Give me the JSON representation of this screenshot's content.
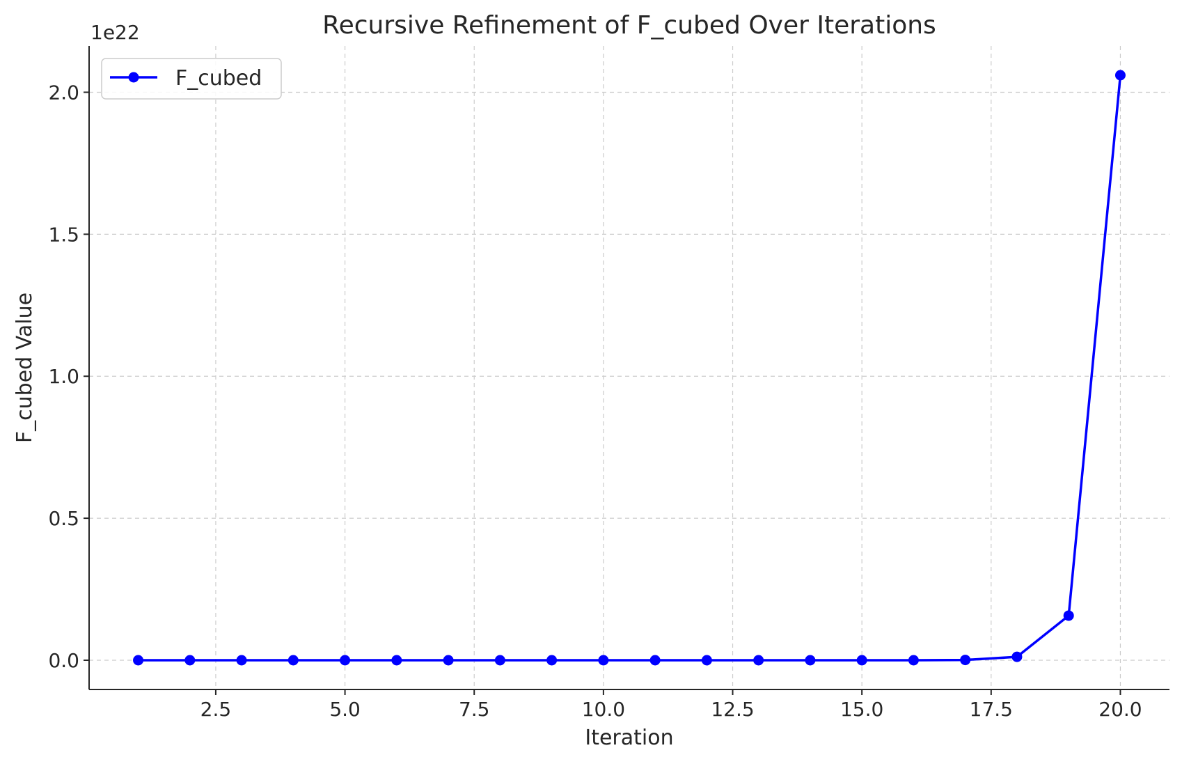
{
  "chart_data": {
    "type": "line",
    "title": "Recursive Refinement of F_cubed Over Iterations",
    "xlabel": "Iteration",
    "ylabel": "F_cubed Value",
    "y_offset_label": "1e22",
    "xlim": [
      0.05,
      20.95
    ],
    "ylim": [
      -0.103,
      2.163
    ],
    "x_ticks": [
      2.5,
      5.0,
      7.5,
      10.0,
      12.5,
      15.0,
      17.5,
      20.0
    ],
    "x_tick_labels": [
      "2.5",
      "5.0",
      "7.5",
      "10.0",
      "12.5",
      "15.0",
      "17.5",
      "20.0"
    ],
    "y_ticks": [
      0.0,
      0.5,
      1.0,
      1.5,
      2.0
    ],
    "y_tick_labels": [
      "0.0",
      "0.5",
      "1.0",
      "1.5",
      "2.0"
    ],
    "grid": true,
    "legend_position": "upper-left",
    "series": [
      {
        "name": "F_cubed",
        "color": "#0000ff",
        "marker": "circle",
        "x": [
          1,
          2,
          3,
          4,
          5,
          6,
          7,
          8,
          9,
          10,
          11,
          12,
          13,
          14,
          15,
          16,
          17,
          18,
          19,
          20
        ],
        "y": [
          0,
          0,
          0,
          0,
          0,
          0,
          0,
          0,
          0,
          0,
          0,
          0,
          0,
          0,
          0,
          0,
          0.001,
          0.012,
          0.157,
          2.06
        ]
      }
    ]
  }
}
